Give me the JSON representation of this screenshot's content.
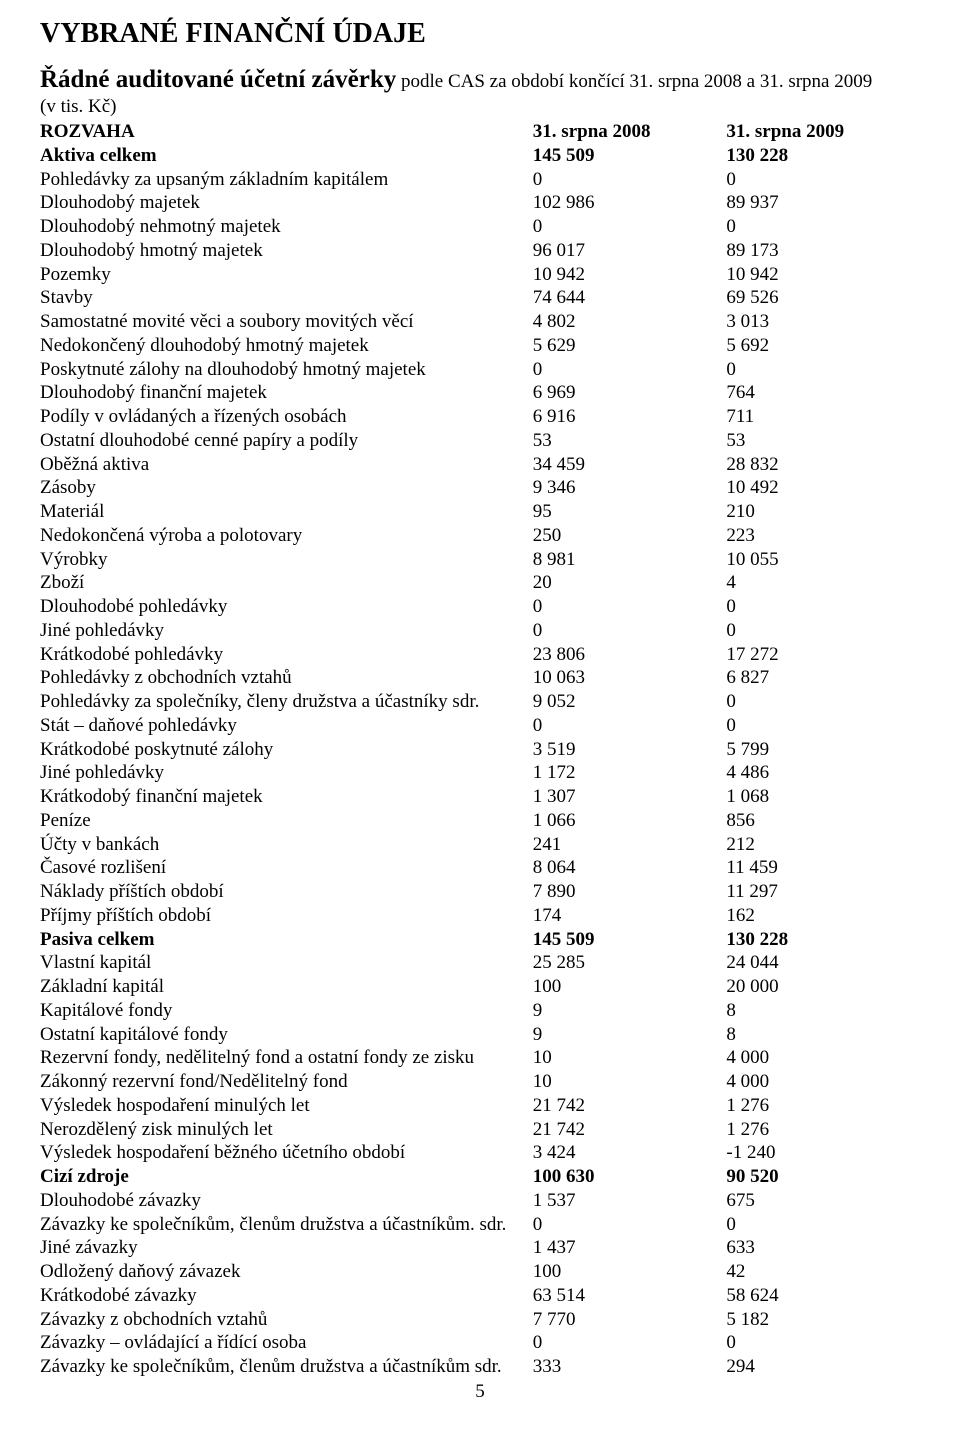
{
  "title": "VYBRANÉ FINANČNÍ ÚDAJE",
  "subtitle_strong": "Řádné auditované účetní závěrky",
  "subtitle_rest": " podle CAS za období končící 31. srpna 2008 a 31. srpna 2009",
  "unit": "(v tis. Kč)",
  "page_number": "5",
  "header": {
    "label": "ROZVAHA",
    "col1": "31. srpna 2008",
    "col2": "31. srpna 2009"
  },
  "rows": [
    {
      "label": "Aktiva celkem",
      "c1": "145 509",
      "c2": "130 228",
      "bold": true
    },
    {
      "label": "Pohledávky za upsaným základním kapitálem",
      "c1": "0",
      "c2": "0"
    },
    {
      "label": "Dlouhodobý majetek",
      "c1": "102 986",
      "c2": "89 937"
    },
    {
      "label": "Dlouhodobý nehmotný majetek",
      "c1": "0",
      "c2": "0"
    },
    {
      "label": "Dlouhodobý hmotný majetek",
      "c1": "96 017",
      "c2": "89 173"
    },
    {
      "label": "Pozemky",
      "c1": "10 942",
      "c2": "10 942"
    },
    {
      "label": "Stavby",
      "c1": "74 644",
      "c2": "69 526"
    },
    {
      "label": "Samostatné movité věci a soubory movitých věcí",
      "c1": "4 802",
      "c2": "3 013"
    },
    {
      "label": "Nedokončený dlouhodobý hmotný majetek",
      "c1": "5 629",
      "c2": "5 692"
    },
    {
      "label": "Poskytnuté zálohy na dlouhodobý hmotný majetek",
      "c1": "0",
      "c2": "0"
    },
    {
      "label": "Dlouhodobý finanční majetek",
      "c1": "6 969",
      "c2": "764"
    },
    {
      "label": "Podíly v ovládaných a řízených osobách",
      "c1": "6 916",
      "c2": "711"
    },
    {
      "label": "Ostatní dlouhodobé cenné papíry a podíly",
      "c1": "53",
      "c2": "53"
    },
    {
      "label": "Oběžná aktiva",
      "c1": "34 459",
      "c2": "28 832"
    },
    {
      "label": "Zásoby",
      "c1": "9 346",
      "c2": "10 492"
    },
    {
      "label": "Materiál",
      "c1": "95",
      "c2": "210"
    },
    {
      "label": "Nedokončená výroba a polotovary",
      "c1": "250",
      "c2": "223"
    },
    {
      "label": "Výrobky",
      "c1": "8 981",
      "c2": "10 055"
    },
    {
      "label": "Zboží",
      "c1": "20",
      "c2": "4"
    },
    {
      "label": "Dlouhodobé pohledávky",
      "c1": "0",
      "c2": "0"
    },
    {
      "label": "Jiné pohledávky",
      "c1": "0",
      "c2": "0"
    },
    {
      "label": "Krátkodobé pohledávky",
      "c1": "23 806",
      "c2": "17 272"
    },
    {
      "label": "Pohledávky z obchodních vztahů",
      "c1": "10 063",
      "c2": "6 827"
    },
    {
      "label": "Pohledávky za společníky, členy družstva a účastníky sdr.",
      "c1": "9 052",
      "c2": "0"
    },
    {
      "label": "Stát – daňové pohledávky",
      "c1": "0",
      "c2": "0"
    },
    {
      "label": "Krátkodobé poskytnuté zálohy",
      "c1": "3 519",
      "c2": "5 799"
    },
    {
      "label": "Jiné pohledávky",
      "c1": "1 172",
      "c2": "4 486"
    },
    {
      "label": "Krátkodobý finanční majetek",
      "c1": "1 307",
      "c2": "1 068"
    },
    {
      "label": "Peníze",
      "c1": "1 066",
      "c2": "856"
    },
    {
      "label": "Účty v bankách",
      "c1": "241",
      "c2": "212"
    },
    {
      "label": "Časové rozlišení",
      "c1": "8 064",
      "c2": "11 459"
    },
    {
      "label": "Náklady příštích období",
      "c1": "7 890",
      "c2": "11 297"
    },
    {
      "label": "Příjmy příštích období",
      "c1": "174",
      "c2": "162"
    },
    {
      "label": "Pasiva celkem",
      "c1": "145 509",
      "c2": "130 228",
      "bold": true
    },
    {
      "label": "Vlastní kapitál",
      "c1": "25 285",
      "c2": "24 044"
    },
    {
      "label": "Základní kapitál",
      "c1": "100",
      "c2": "20 000"
    },
    {
      "label": "Kapitálové fondy",
      "c1": "9",
      "c2": "8"
    },
    {
      "label": "Ostatní kapitálové fondy",
      "c1": "9",
      "c2": "8"
    },
    {
      "label": "Rezervní fondy, nedělitelný fond a ostatní fondy ze zisku",
      "c1": "10",
      "c2": "4 000"
    },
    {
      "label": "Zákonný rezervní fond/Nedělitelný fond",
      "c1": "10",
      "c2": "4 000"
    },
    {
      "label": "Výsledek hospodaření minulých let",
      "c1": "21 742",
      "c2": "1 276"
    },
    {
      "label": "Nerozdělený zisk minulých let",
      "c1": "21 742",
      "c2": "1 276"
    },
    {
      "label": "Výsledek hospodaření běžného účetního období",
      "c1": "3 424",
      "c2": "-1 240"
    },
    {
      "label": "Cizí zdroje",
      "c1": "100 630",
      "c2": "90 520",
      "bold": true
    },
    {
      "label": "Dlouhodobé závazky",
      "c1": "1 537",
      "c2": "675"
    },
    {
      "label": "Závazky ke společníkům, členům družstva a účastníkům. sdr.",
      "c1": "0",
      "c2": "0"
    },
    {
      "label": "Jiné závazky",
      "c1": "1 437",
      "c2": "633"
    },
    {
      "label": "Odložený daňový závazek",
      "c1": "100",
      "c2": "42"
    },
    {
      "label": "Krátkodobé závazky",
      "c1": "63 514",
      "c2": "58 624"
    },
    {
      "label": "Závazky z obchodních vztahů",
      "c1": "7 770",
      "c2": "5 182"
    },
    {
      "label": "Závazky – ovládající a řídící osoba",
      "c1": "0",
      "c2": "0"
    },
    {
      "label": "Závazky ke společníkům, členům družstva a účastníkům sdr.",
      "c1": "333",
      "c2": "294"
    }
  ]
}
